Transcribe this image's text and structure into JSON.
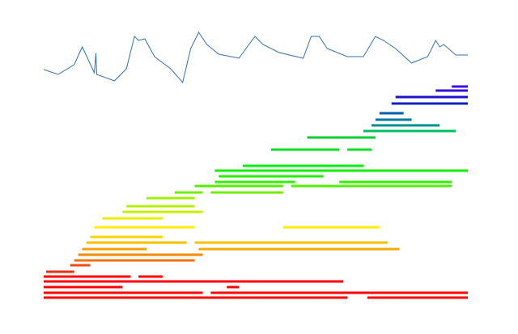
{
  "chart_data": [
    {
      "type": "line",
      "color": "#3070b0",
      "xlim": [
        50,
        582
      ],
      "ylim": [
        0,
        80
      ],
      "x": [
        52,
        70,
        90,
        100,
        108,
        115,
        117,
        118,
        140,
        155,
        165,
        170,
        178,
        190,
        210,
        225,
        235,
        245,
        255,
        270,
        295,
        315,
        325,
        345,
        375,
        385,
        395,
        405,
        430,
        450,
        465,
        475,
        490,
        510,
        530,
        540,
        545,
        550,
        565,
        580
      ],
      "values": [
        24,
        18,
        30,
        52,
        35,
        20,
        44,
        18,
        10,
        25,
        65,
        60,
        62,
        40,
        25,
        8,
        50,
        70,
        55,
        43,
        38,
        65,
        55,
        45,
        38,
        65,
        65,
        50,
        40,
        40,
        65,
        60,
        50,
        32,
        40,
        60,
        52,
        55,
        42,
        42
      ]
    },
    {
      "type": "segments",
      "xlim": [
        50,
        582
      ],
      "ylim": [
        0,
        270
      ],
      "segments": [
        {
          "y": 7,
          "x": [
            52,
            430
          ],
          "color": "#ff0000"
        },
        {
          "y": 7,
          "x": [
            455,
            580
          ],
          "color": "#ff0000"
        },
        {
          "y": 13,
          "x": [
            52,
            250
          ],
          "color": "#ff0000"
        },
        {
          "y": 13,
          "x": [
            260,
            580
          ],
          "color": "#ff0000"
        },
        {
          "y": 20,
          "x": [
            52,
            150
          ],
          "color": "#ff0000"
        },
        {
          "y": 20,
          "x": [
            280,
            295
          ],
          "color": "#ff0000"
        },
        {
          "y": 27,
          "x": [
            52,
            425
          ],
          "color": "#ff0000"
        },
        {
          "y": 33,
          "x": [
            52,
            160
          ],
          "color": "#ff0000"
        },
        {
          "y": 33,
          "x": [
            170,
            200
          ],
          "color": "#ff0000"
        },
        {
          "y": 39,
          "x": [
            55,
            90
          ],
          "color": "#e83010"
        },
        {
          "y": 47,
          "x": [
            85,
            110
          ],
          "color": "#f04a10"
        },
        {
          "y": 53,
          "x": [
            90,
            240
          ],
          "color": "#f07010"
        },
        {
          "y": 60,
          "x": [
            95,
            250
          ],
          "color": "#f28a00"
        },
        {
          "y": 67,
          "x": [
            100,
            180
          ],
          "color": "#f5a000"
        },
        {
          "y": 67,
          "x": [
            245,
            495
          ],
          "color": "#f5a800"
        },
        {
          "y": 75,
          "x": [
            105,
            230
          ],
          "color": "#f8c000"
        },
        {
          "y": 75,
          "x": [
            240,
            480
          ],
          "color": "#f8c000"
        },
        {
          "y": 82,
          "x": [
            110,
            200
          ],
          "color": "#fad400"
        },
        {
          "y": 94,
          "x": [
            115,
            240
          ],
          "color": "#ffee00"
        },
        {
          "y": 94,
          "x": [
            350,
            470
          ],
          "color": "#ffee00"
        },
        {
          "y": 105,
          "x": [
            125,
            200
          ],
          "color": "#e8f000"
        },
        {
          "y": 113,
          "x": [
            150,
            250
          ],
          "color": "#c8f000"
        },
        {
          "y": 120,
          "x": [
            155,
            240
          ],
          "color": "#b0f000"
        },
        {
          "y": 130,
          "x": [
            180,
            240
          ],
          "color": "#a0f000"
        },
        {
          "y": 137,
          "x": [
            215,
            250
          ],
          "color": "#70f000"
        },
        {
          "y": 137,
          "x": [
            260,
            350
          ],
          "color": "#70f000"
        },
        {
          "y": 145,
          "x": [
            240,
            350
          ],
          "color": "#50f000"
        },
        {
          "y": 145,
          "x": [
            360,
            560
          ],
          "color": "#50f000"
        },
        {
          "y": 150,
          "x": [
            265,
            365
          ],
          "color": "#30f000"
        },
        {
          "y": 150,
          "x": [
            420,
            560
          ],
          "color": "#30f000"
        },
        {
          "y": 157,
          "x": [
            270,
            400
          ],
          "color": "#20f000"
        },
        {
          "y": 164,
          "x": [
            265,
            580
          ],
          "color": "#10f000"
        },
        {
          "y": 170,
          "x": [
            300,
            450
          ],
          "color": "#00f010"
        },
        {
          "y": 190,
          "x": [
            335,
            420
          ],
          "color": "#00e020"
        },
        {
          "y": 190,
          "x": [
            430,
            460
          ],
          "color": "#00e020"
        },
        {
          "y": 205,
          "x": [
            380,
            465
          ],
          "color": "#00d030"
        },
        {
          "y": 213,
          "x": [
            450,
            565
          ],
          "color": "#00c060"
        },
        {
          "y": 220,
          "x": [
            460,
            545
          ],
          "color": "#009090"
        },
        {
          "y": 227,
          "x": [
            465,
            510
          ],
          "color": "#007aa0"
        },
        {
          "y": 235,
          "x": [
            470,
            500
          ],
          "color": "#0060b0"
        },
        {
          "y": 247,
          "x": [
            485,
            580
          ],
          "color": "#1020c0"
        },
        {
          "y": 255,
          "x": [
            490,
            580
          ],
          "color": "#2010d0"
        },
        {
          "y": 263,
          "x": [
            540,
            580
          ],
          "color": "#3010e0"
        },
        {
          "y": 268,
          "x": [
            560,
            580
          ],
          "color": "#4010e0"
        }
      ]
    }
  ]
}
